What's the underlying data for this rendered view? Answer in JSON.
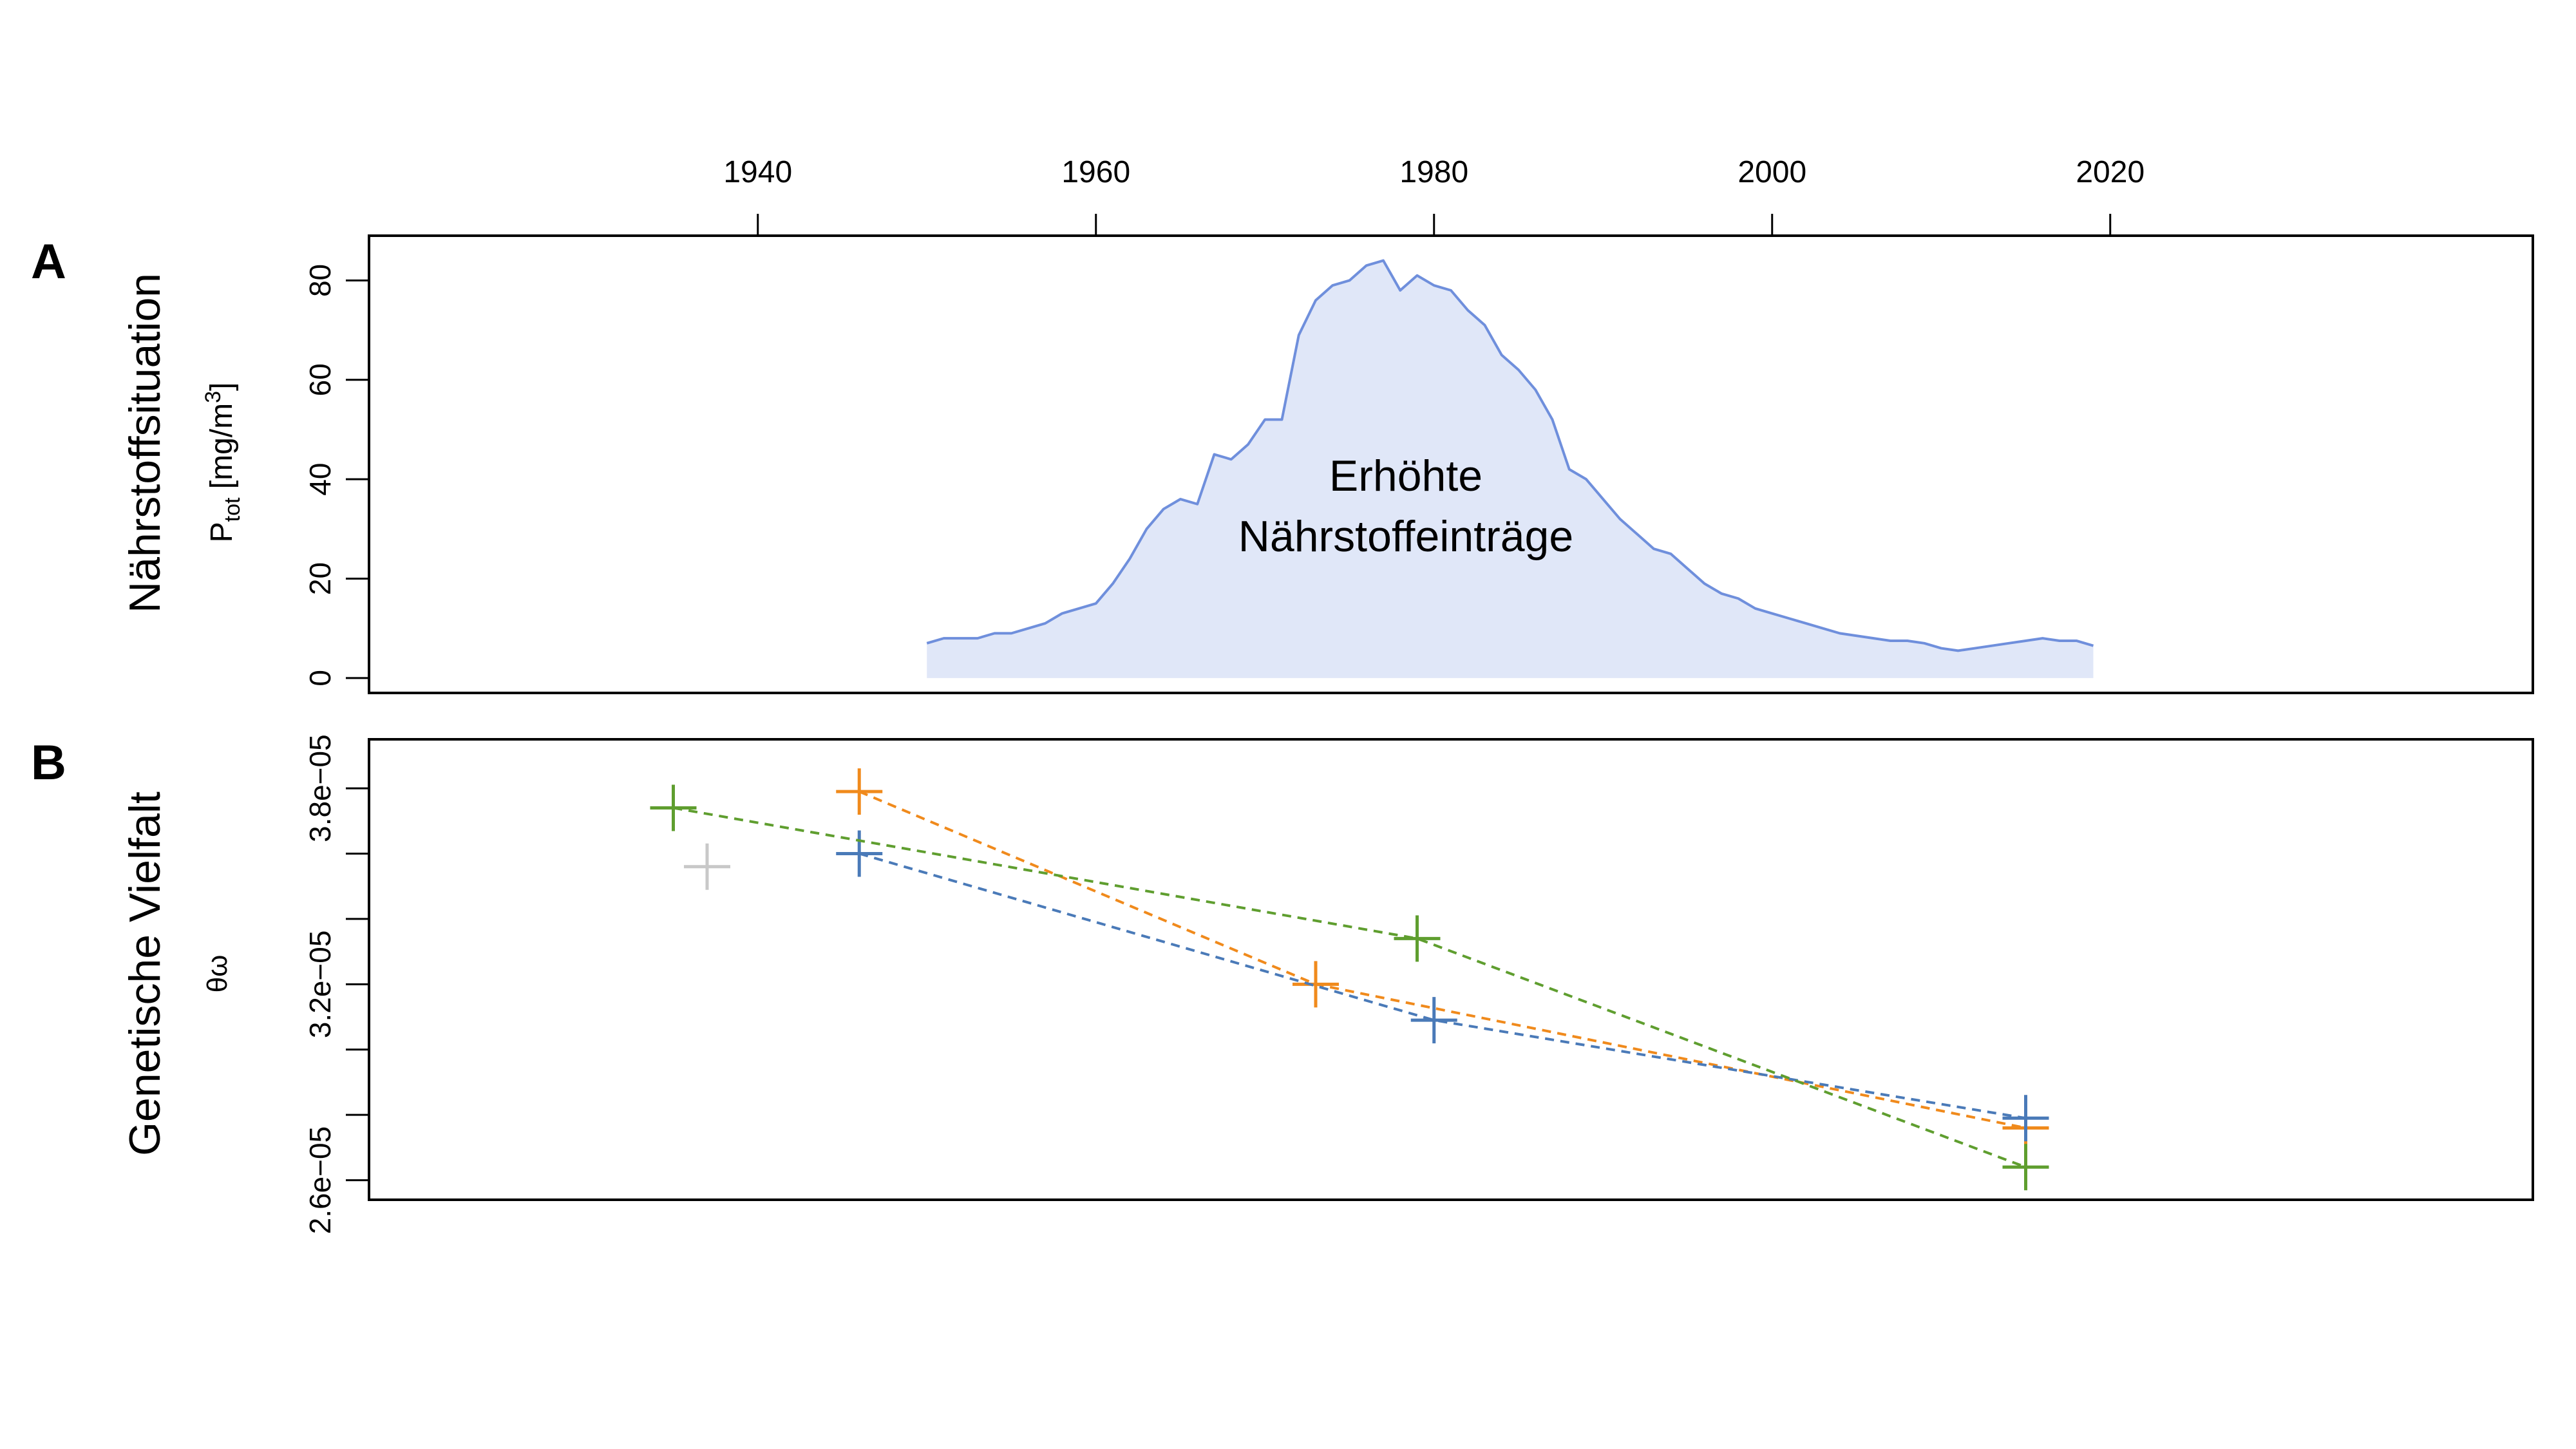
{
  "top_axis": {
    "ticks": [
      1940,
      1960,
      1980,
      2000,
      2020
    ],
    "tick_labels": [
      "1940",
      "1960",
      "1980",
      "2000",
      "2020"
    ]
  },
  "chart_data": [
    {
      "type": "area",
      "panel_label": "A",
      "ylabel_main": "Nährstoffsituation",
      "ylabel_sub": {
        "base": "P",
        "sub": "tot",
        "unit_prefix": " [mg/m",
        "sup": "3",
        "unit_suffix": "]"
      },
      "annotation": [
        "Erhöhte",
        "Nährstoffeinträge"
      ],
      "xlim": [
        1917,
        2045
      ],
      "ylim": [
        -3,
        89
      ],
      "y_ticks": [
        0,
        20,
        40,
        60,
        80
      ],
      "y_tick_labels": [
        "0",
        "20",
        "40",
        "60",
        "80"
      ],
      "colors": {
        "line": "#6f8fdc",
        "fill": "#e0e7f8",
        "annotation": "#6f8fdc"
      },
      "x": [
        1950,
        1951,
        1952,
        1953,
        1954,
        1955,
        1956,
        1957,
        1958,
        1959,
        1960,
        1961,
        1962,
        1963,
        1964,
        1965,
        1966,
        1967,
        1968,
        1969,
        1970,
        1971,
        1972,
        1973,
        1974,
        1975,
        1976,
        1977,
        1978,
        1979,
        1980,
        1981,
        1982,
        1983,
        1984,
        1985,
        1986,
        1987,
        1988,
        1989,
        1990,
        1991,
        1992,
        1993,
        1994,
        1995,
        1996,
        1997,
        1998,
        1999,
        2000,
        2001,
        2002,
        2003,
        2004,
        2005,
        2006,
        2007,
        2008,
        2009,
        2010,
        2011,
        2012,
        2013,
        2014,
        2015,
        2016,
        2017,
        2018,
        2019
      ],
      "y": [
        7,
        8,
        8,
        8,
        9,
        9,
        10,
        11,
        13,
        14,
        15,
        19,
        24,
        30,
        34,
        36,
        35,
        45,
        44,
        47,
        52,
        52,
        69,
        76,
        79,
        80,
        83,
        84,
        78,
        81,
        79,
        78,
        74,
        71,
        65,
        62,
        58,
        52,
        42,
        40,
        36,
        32,
        29,
        26,
        25,
        22,
        19,
        17,
        16,
        14,
        13,
        12,
        11,
        10,
        9,
        8.5,
        8,
        7.5,
        7.5,
        7,
        6,
        5.5,
        6,
        6.5,
        7,
        7.5,
        8,
        7.5,
        7.5,
        6.5
      ]
    },
    {
      "type": "scatter",
      "panel_label": "B",
      "ylabel_main": "Genetische Vielfalt",
      "ylabel_sub": "θω",
      "xlim": [
        1917,
        2045
      ],
      "ylim": [
        2.54e-05,
        3.95e-05
      ],
      "y_ticks": [
        2.6e-05,
        2.8e-05,
        3e-05,
        3.2e-05,
        3.4e-05,
        3.6e-05,
        3.8e-05
      ],
      "y_tick_labels": [
        "2.6e−05",
        "",
        "",
        "3.2e−05",
        "",
        "",
        "3.8e−05"
      ],
      "series": [
        {
          "color": "#f08a1c",
          "x": [
            1946,
            1973,
            2015
          ],
          "y": [
            3.79e-05,
            3.2e-05,
            2.76e-05
          ]
        },
        {
          "color": "#4a7ab8",
          "x": [
            1946,
            1980,
            2015
          ],
          "y": [
            3.6e-05,
            3.09e-05,
            2.79e-05
          ]
        },
        {
          "color": "#5f9e2f",
          "x": [
            1935,
            1979,
            2015
          ],
          "y": [
            3.74e-05,
            3.34e-05,
            2.64e-05
          ]
        },
        {
          "color": "#c8c8c8",
          "x": [
            1937
          ],
          "y": [
            3.56e-05
          ]
        }
      ]
    }
  ]
}
